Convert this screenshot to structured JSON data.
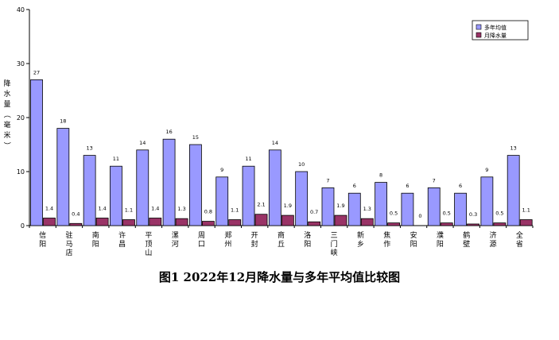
{
  "chart_data": {
    "type": "bar",
    "title": "图1     2022年12月降水量与多年平均值比较图",
    "ylabel": "降水量（毫米）",
    "ylim": [
      0,
      40
    ],
    "yticks": [
      0,
      10,
      20,
      30,
      40
    ],
    "legend_position": "top-right",
    "categories": [
      "信阳",
      "驻马店",
      "南阳",
      "许昌",
      "平顶山",
      "漯河",
      "周口",
      "郑州",
      "开封",
      "商丘",
      "洛阳",
      "三门峡",
      "新乡",
      "焦作",
      "安阳",
      "濮阳",
      "鹤壁",
      "济源",
      "全省"
    ],
    "series": [
      {
        "name": "多年均值",
        "color": "#9999ff",
        "values": [
          27,
          18,
          13,
          11,
          14,
          16,
          15,
          9,
          11,
          14,
          10,
          7,
          6,
          8,
          6,
          7,
          6,
          9,
          13
        ],
        "labels": [
          "27",
          "18",
          "13",
          "11",
          "14",
          "16",
          "15",
          "9",
          "11",
          "14",
          "10",
          "7",
          "6",
          "8",
          "6",
          "7",
          "6",
          "9",
          "13"
        ]
      },
      {
        "name": "月降水量",
        "color": "#993366",
        "values": [
          1.4,
          0.4,
          1.4,
          1.1,
          1.4,
          1.3,
          0.8,
          1.1,
          2.1,
          1.9,
          0.7,
          1.9,
          1.3,
          0.5,
          0,
          0.5,
          0.3,
          0.5,
          1.1
        ],
        "labels": [
          "1.4",
          "0.4",
          "1.4",
          "1.1",
          "1.4",
          "1.3",
          "0.8",
          "1.1",
          "2.1",
          "1.9",
          "0.7",
          "1.9",
          "1.3",
          "0.5",
          "0",
          "0.5",
          "0.3",
          "0.5",
          "1.1"
        ]
      }
    ]
  }
}
